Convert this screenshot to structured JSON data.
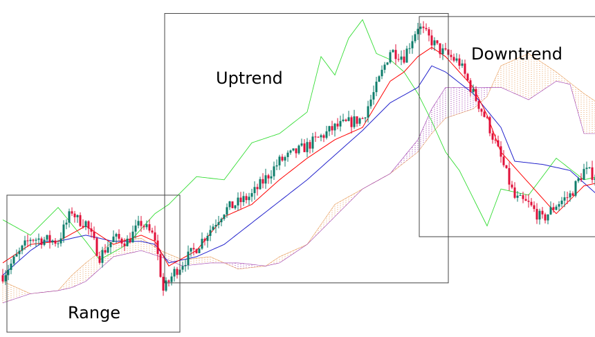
{
  "chart_data": {
    "type": "candlestick",
    "title": "",
    "xlabel": "",
    "ylabel": "",
    "ylim": [
      0,
      100
    ],
    "colors": {
      "bull": "#0e7d6b",
      "bear": "#e0103a",
      "tenkan": "#ff0000",
      "kijun": "#2222cc",
      "chikou": "#33dd33",
      "kumo_bull": "#e8a060",
      "kumo_bear": "#9933aa",
      "box": "#444444"
    },
    "zones": [
      {
        "label": "Range",
        "x_range": [
          0,
          63
        ],
        "y_range": [
          0,
          40
        ]
      },
      {
        "label": "Uptrend",
        "x_range": [
          57,
          160
        ],
        "y_range": [
          16,
          99
        ]
      },
      {
        "label": "Downtrend",
        "x_range": [
          149,
          215
        ],
        "y_range": [
          31,
          98
        ]
      }
    ],
    "price_anchors": [
      [
        0,
        14
      ],
      [
        10,
        26
      ],
      [
        20,
        25
      ],
      [
        25,
        35
      ],
      [
        27,
        32
      ],
      [
        30,
        31
      ],
      [
        35,
        20
      ],
      [
        40,
        26
      ],
      [
        45,
        25
      ],
      [
        50,
        31
      ],
      [
        55,
        26
      ],
      [
        58,
        9
      ],
      [
        62,
        15
      ],
      [
        70,
        23
      ],
      [
        80,
        35
      ],
      [
        90,
        40
      ],
      [
        100,
        51
      ],
      [
        110,
        56
      ],
      [
        120,
        62
      ],
      [
        130,
        65
      ],
      [
        135,
        75
      ],
      [
        140,
        87
      ],
      [
        145,
        85
      ],
      [
        150,
        95
      ],
      [
        153,
        92
      ],
      [
        158,
        87
      ],
      [
        165,
        83
      ],
      [
        170,
        73
      ],
      [
        175,
        64
      ],
      [
        180,
        52
      ],
      [
        185,
        39
      ],
      [
        190,
        37
      ],
      [
        195,
        32
      ],
      [
        200,
        37
      ],
      [
        205,
        40
      ],
      [
        210,
        48
      ],
      [
        215,
        46
      ]
    ],
    "tenkan_anchors": [
      [
        0,
        18
      ],
      [
        10,
        24
      ],
      [
        20,
        25
      ],
      [
        30,
        30
      ],
      [
        40,
        24
      ],
      [
        50,
        27
      ],
      [
        55,
        25
      ],
      [
        60,
        17
      ],
      [
        70,
        22
      ],
      [
        80,
        33
      ],
      [
        90,
        37
      ],
      [
        100,
        45
      ],
      [
        110,
        52
      ],
      [
        120,
        58
      ],
      [
        130,
        62
      ],
      [
        140,
        77
      ],
      [
        145,
        80
      ],
      [
        150,
        85
      ],
      [
        155,
        88
      ],
      [
        160,
        85
      ],
      [
        170,
        75
      ],
      [
        175,
        66
      ],
      [
        180,
        54
      ],
      [
        190,
        44
      ],
      [
        200,
        34
      ],
      [
        210,
        43
      ],
      [
        215,
        44
      ]
    ],
    "kijun_anchors": [
      [
        0,
        14
      ],
      [
        10,
        22
      ],
      [
        15,
        25
      ],
      [
        20,
        25
      ],
      [
        30,
        27
      ],
      [
        40,
        25
      ],
      [
        50,
        25
      ],
      [
        55,
        24
      ],
      [
        60,
        18
      ],
      [
        70,
        20
      ],
      [
        80,
        24
      ],
      [
        90,
        31
      ],
      [
        100,
        38
      ],
      [
        110,
        45
      ],
      [
        120,
        53
      ],
      [
        130,
        61
      ],
      [
        140,
        70
      ],
      [
        150,
        75
      ],
      [
        155,
        82
      ],
      [
        160,
        80
      ],
      [
        170,
        73
      ],
      [
        180,
        62
      ],
      [
        185,
        51
      ],
      [
        195,
        50
      ],
      [
        205,
        48
      ],
      [
        215,
        40
      ]
    ],
    "chikou_anchors": [
      [
        0,
        32
      ],
      [
        10,
        27
      ],
      [
        20,
        36
      ],
      [
        30,
        25
      ],
      [
        35,
        19
      ],
      [
        45,
        24
      ],
      [
        55,
        34
      ],
      [
        60,
        37
      ],
      [
        70,
        46
      ],
      [
        80,
        45
      ],
      [
        90,
        57
      ],
      [
        100,
        60
      ],
      [
        110,
        67
      ],
      [
        115,
        85
      ],
      [
        120,
        79
      ],
      [
        125,
        91
      ],
      [
        130,
        97
      ],
      [
        135,
        86
      ],
      [
        140,
        84
      ],
      [
        145,
        80
      ],
      [
        150,
        73
      ],
      [
        155,
        64
      ],
      [
        160,
        54
      ],
      [
        165,
        48
      ],
      [
        170,
        39
      ],
      [
        175,
        30
      ],
      [
        180,
        42
      ],
      [
        190,
        40
      ],
      [
        200,
        52
      ],
      [
        210,
        45
      ],
      [
        215,
        46
      ]
    ],
    "senkou_a_anchors": [
      [
        0,
        12
      ],
      [
        10,
        8
      ],
      [
        20,
        9
      ],
      [
        25,
        14
      ],
      [
        30,
        18
      ],
      [
        40,
        25
      ],
      [
        50,
        26
      ],
      [
        57,
        22
      ],
      [
        65,
        19
      ],
      [
        75,
        20
      ],
      [
        85,
        16
      ],
      [
        95,
        17
      ],
      [
        100,
        20
      ],
      [
        110,
        24
      ],
      [
        120,
        37
      ],
      [
        130,
        42
      ],
      [
        140,
        47
      ],
      [
        150,
        54
      ],
      [
        155,
        60
      ],
      [
        160,
        65
      ],
      [
        170,
        68
      ],
      [
        175,
        72
      ],
      [
        180,
        82
      ],
      [
        190,
        86
      ],
      [
        200,
        80
      ],
      [
        210,
        73
      ],
      [
        215,
        70
      ]
    ],
    "senkou_b_anchors": [
      [
        0,
        5
      ],
      [
        10,
        8
      ],
      [
        20,
        9
      ],
      [
        25,
        10
      ],
      [
        30,
        12
      ],
      [
        40,
        20
      ],
      [
        50,
        22
      ],
      [
        57,
        20
      ],
      [
        65,
        17
      ],
      [
        75,
        18
      ],
      [
        85,
        18
      ],
      [
        95,
        17
      ],
      [
        100,
        18
      ],
      [
        110,
        24
      ],
      [
        120,
        33
      ],
      [
        130,
        42
      ],
      [
        140,
        47
      ],
      [
        150,
        58
      ],
      [
        155,
        68
      ],
      [
        160,
        75
      ],
      [
        170,
        75
      ],
      [
        180,
        75
      ],
      [
        190,
        71
      ],
      [
        200,
        77
      ],
      [
        205,
        76
      ],
      [
        210,
        60
      ],
      [
        215,
        60
      ]
    ]
  }
}
